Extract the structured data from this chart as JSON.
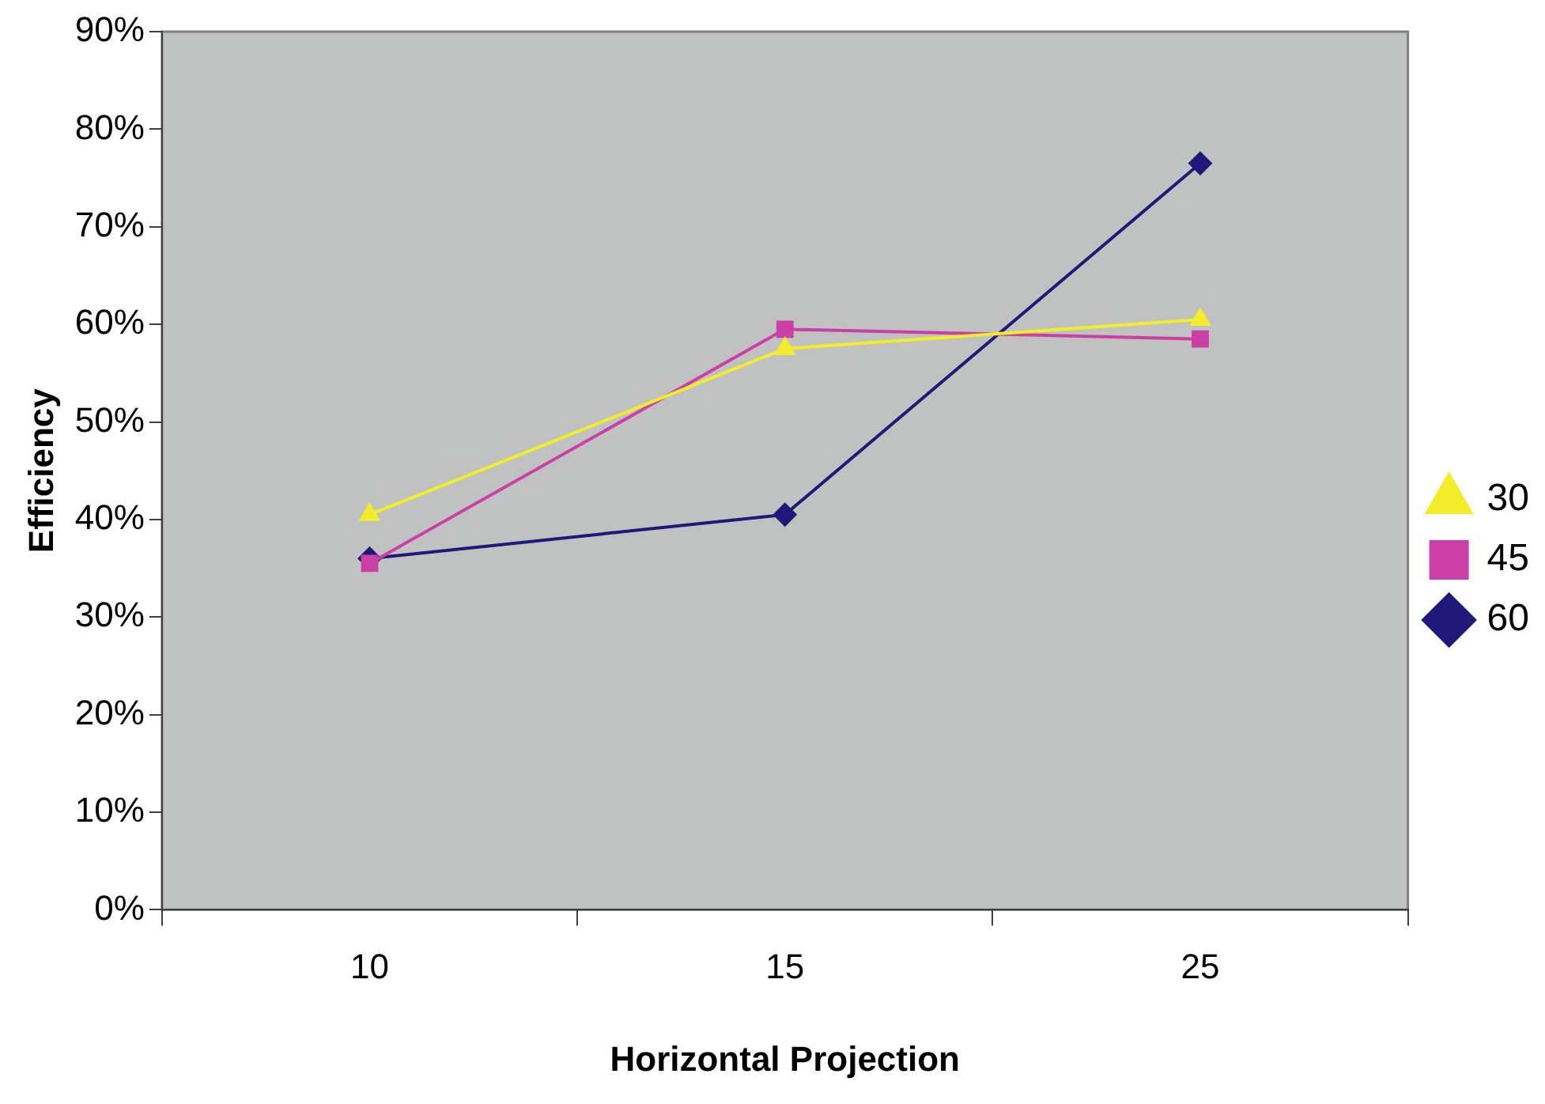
{
  "chart_data": {
    "type": "line",
    "xlabel": "Horizontal Projection",
    "ylabel": "Efficiency",
    "categories": [
      "10",
      "15",
      "25"
    ],
    "series": [
      {
        "name": "60",
        "color": "#1f1a7a",
        "marker": "diamond",
        "values": [
          36,
          40.5,
          76.5
        ]
      },
      {
        "name": "45",
        "color": "#cc3fa6",
        "marker": "square",
        "values": [
          35.5,
          59.5,
          58.5
        ]
      },
      {
        "name": "30",
        "color": "#f2ec2a",
        "marker": "triangle",
        "values": [
          40.5,
          57.5,
          60.5
        ]
      }
    ],
    "ylim": [
      0,
      90
    ],
    "yticks": [
      {
        "value": 0,
        "label": "0%"
      },
      {
        "value": 10,
        "label": "10%"
      },
      {
        "value": 20,
        "label": "20%"
      },
      {
        "value": 30,
        "label": "30%"
      },
      {
        "value": 40,
        "label": "40%"
      },
      {
        "value": 50,
        "label": "50%"
      },
      {
        "value": 60,
        "label": "60%"
      },
      {
        "value": 70,
        "label": "70%"
      },
      {
        "value": 80,
        "label": "80%"
      },
      {
        "value": 90,
        "label": "90%"
      }
    ],
    "grid": false,
    "legend": "right",
    "line_style": "solid"
  }
}
